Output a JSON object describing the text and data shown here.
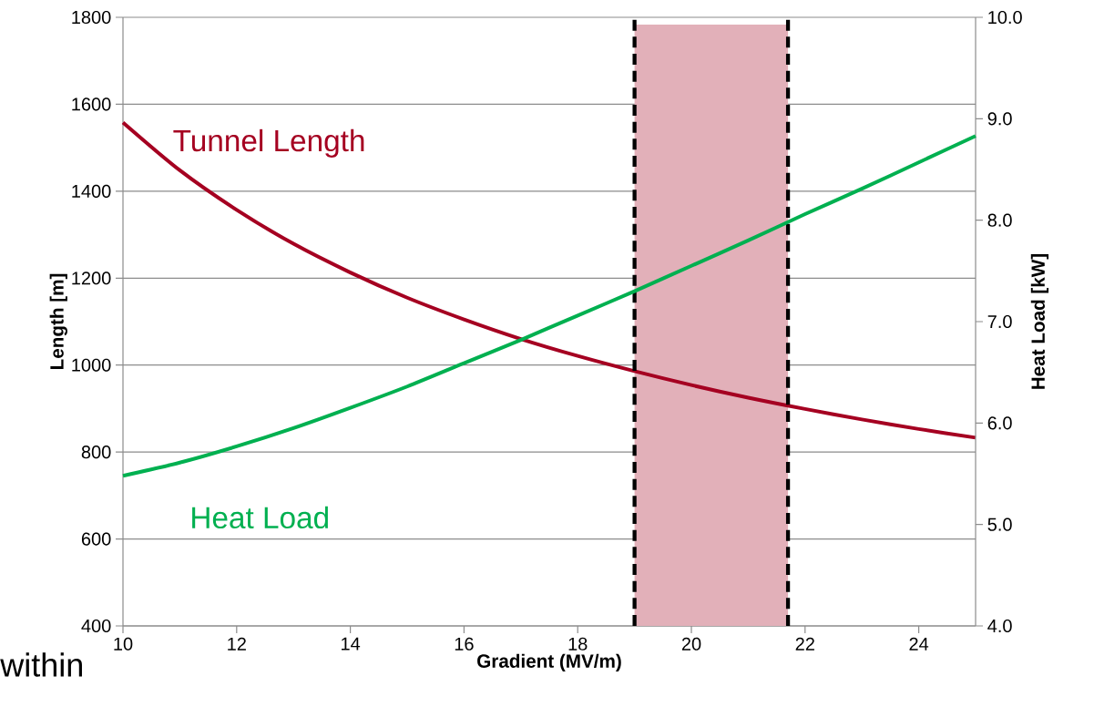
{
  "chart_data": {
    "type": "line",
    "xlabel": "Gradient (MV/m)",
    "ylabel": "Length [m]",
    "y2label": "Heat Load [kW]",
    "x": [
      10,
      11,
      12,
      13,
      14,
      15,
      16,
      17,
      18,
      19,
      20,
      21,
      22,
      23,
      24,
      25
    ],
    "series": [
      {
        "name": "Tunnel Length",
        "color": "#a50021",
        "values": [
          1558,
          1448,
          1357,
          1279,
          1213,
          1155,
          1105,
          1060,
          1021,
          986,
          954,
          925,
          899,
          875,
          853,
          833
        ]
      },
      {
        "name": "Heat Load",
        "color": "#00b050",
        "axis": "y2",
        "values": [
          5.48,
          5.61,
          5.77,
          5.95,
          6.15,
          6.36,
          6.59,
          6.82,
          7.06,
          7.3,
          7.55,
          7.8,
          8.06,
          8.31,
          8.57,
          8.83
        ]
      }
    ],
    "xlim": [
      10,
      25
    ],
    "xticks": [
      10,
      12,
      14,
      16,
      18,
      20,
      22,
      24
    ],
    "ylim": [
      400,
      1800
    ],
    "yticks": [
      400,
      600,
      800,
      1000,
      1200,
      1400,
      1600,
      1800
    ],
    "y2lim": [
      4,
      10
    ],
    "y2ticks": [
      {
        "value": 4,
        "label": "4.0"
      },
      {
        "value": 5,
        "label": "5.0"
      },
      {
        "value": 6,
        "label": "6.0"
      },
      {
        "value": 7,
        "label": "7.0"
      },
      {
        "value": 8,
        "label": "8.0"
      },
      {
        "value": 9,
        "label": "9.0"
      },
      {
        "value": 10,
        "label": "10.0"
      }
    ],
    "grid": "y",
    "ref_lines": [
      {
        "axis": "x",
        "value": 19,
        "color": "#000000",
        "line_style": "dashed"
      },
      {
        "axis": "x",
        "value": 21.7,
        "color": "#000000",
        "line_style": "dashed"
      }
    ],
    "bands": [
      {
        "axis": "x",
        "from": 19,
        "to": 21.7,
        "color": "#e2b0b9"
      }
    ],
    "annotations": [
      "within"
    ]
  }
}
